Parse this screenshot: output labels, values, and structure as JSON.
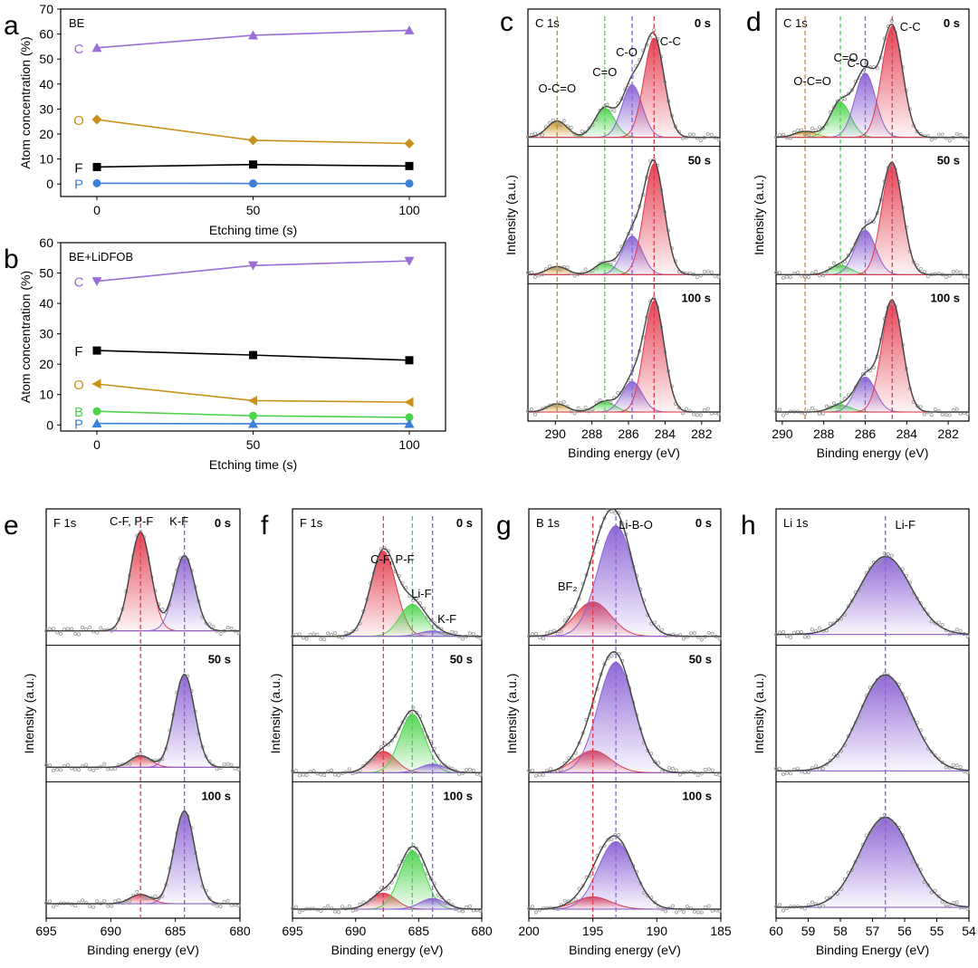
{
  "colors": {
    "purple": "#9b6fd6",
    "orange": "#c8911b",
    "black": "#000000",
    "blue": "#3b7fd9",
    "green": "#4bd34b",
    "red": "#e23a4c",
    "violet": "#8a61d4",
    "gray": "#888888"
  },
  "chart_data": [
    {
      "panel": "a",
      "type": "line",
      "title": "BE",
      "xlabel": "Etching time (s)",
      "ylabel": "Atom concentration (%)",
      "x": [
        0,
        50,
        100
      ],
      "xticks": [
        "0",
        "50",
        "100"
      ],
      "ylim": [
        -5,
        70
      ],
      "yticks": [
        "0",
        "10",
        "20",
        "30",
        "40",
        "50",
        "60",
        "70"
      ],
      "series": [
        {
          "name": "C",
          "color": "#9b6fd6",
          "marker": "triangle-up",
          "values": [
            54.5,
            59.5,
            61.5
          ]
        },
        {
          "name": "O",
          "color": "#c8911b",
          "marker": "diamond",
          "values": [
            25.8,
            17.5,
            16.2
          ]
        },
        {
          "name": "F",
          "color": "#000000",
          "marker": "square",
          "values": [
            6.8,
            7.8,
            7.2
          ]
        },
        {
          "name": "P",
          "color": "#3b7fd9",
          "marker": "circle",
          "values": [
            0.3,
            0.2,
            0.2
          ]
        }
      ]
    },
    {
      "panel": "b",
      "type": "line",
      "title": "BE+LiDFOB",
      "xlabel": "Etching time (s)",
      "ylabel": "Atom concentration (%)",
      "x": [
        0,
        50,
        100
      ],
      "xticks": [
        "0",
        "50",
        "100"
      ],
      "ylim": [
        -2,
        60
      ],
      "yticks": [
        "0",
        "10",
        "20",
        "30",
        "40",
        "50",
        "60"
      ],
      "series": [
        {
          "name": "C",
          "color": "#9b6fd6",
          "marker": "triangle-down",
          "values": [
            47.3,
            52.5,
            54.0
          ]
        },
        {
          "name": "F",
          "color": "#000000",
          "marker": "square",
          "values": [
            24.5,
            23.0,
            21.3
          ]
        },
        {
          "name": "O",
          "color": "#c8911b",
          "marker": "triangle-left",
          "values": [
            13.5,
            8.0,
            7.5
          ]
        },
        {
          "name": "B",
          "color": "#4bd34b",
          "marker": "circle",
          "values": [
            4.5,
            3.0,
            2.5
          ]
        },
        {
          "name": "P",
          "color": "#3b7fd9",
          "marker": "triangle-up",
          "values": [
            0.5,
            0.4,
            0.4
          ]
        }
      ]
    },
    {
      "panel": "c",
      "type": "line",
      "title": "C 1s",
      "xlabel": "Binding energy (eV)",
      "ylabel": "Intensity (a.u.)",
      "xlim": [
        291.5,
        281
      ],
      "xticks": [
        "290",
        "288",
        "286",
        "284",
        "282"
      ],
      "time_labels": [
        "0 s",
        "50 s",
        "100 s"
      ],
      "peak_labels": [
        "O-C=O",
        "C=O",
        "C-O",
        "C-C"
      ],
      "peaks": [
        {
          "label": "O-C=O",
          "center": 289.9,
          "color": "#c8911b",
          "amps": [
            0.14,
            0.07,
            0.07
          ]
        },
        {
          "label": "C=O",
          "center": 287.3,
          "color": "#4bd34b",
          "amps": [
            0.25,
            0.1,
            0.09
          ]
        },
        {
          "label": "C-O",
          "center": 285.8,
          "color": "#8a61d4",
          "amps": [
            0.45,
            0.33,
            0.26
          ]
        },
        {
          "label": "C-C",
          "center": 284.6,
          "color": "#e23a4c",
          "amps": [
            0.85,
            0.95,
            0.95
          ]
        }
      ]
    },
    {
      "panel": "d",
      "type": "line",
      "title": "C 1s",
      "xlabel": "Binding energy (eV)",
      "ylabel": "Intensity (a.u.)",
      "xlim": [
        290.3,
        281
      ],
      "xticks": [
        "290",
        "288",
        "286",
        "284",
        "282"
      ],
      "time_labels": [
        "0 s",
        "50 s",
        "100 s"
      ],
      "peak_labels": [
        "O-C=O",
        "C=O",
        "C-O",
        "C-C"
      ],
      "peaks": [
        {
          "label": "O-C=O",
          "center": 288.9,
          "color": "#c8911b",
          "amps": [
            0.05,
            0.0,
            0.0
          ]
        },
        {
          "label": "C=O",
          "center": 287.2,
          "color": "#4bd34b",
          "amps": [
            0.3,
            0.08,
            0.06
          ]
        },
        {
          "label": "C-O",
          "center": 286.0,
          "color": "#8a61d4",
          "amps": [
            0.55,
            0.38,
            0.3
          ]
        },
        {
          "label": "C-C",
          "center": 284.7,
          "color": "#e23a4c",
          "amps": [
            0.95,
            0.95,
            0.95
          ]
        }
      ]
    },
    {
      "panel": "e",
      "type": "line",
      "title": "F 1s",
      "xlabel": "Binding energy (eV)",
      "ylabel": "Intensity (a.u.)",
      "xlim": [
        695,
        680
      ],
      "xticks": [
        "695",
        "690",
        "685",
        "680"
      ],
      "time_labels": [
        "0 s",
        "50 s",
        "100 s"
      ],
      "peak_labels": [
        "C-F, P-F",
        "K-F"
      ],
      "peaks": [
        {
          "label": "C-F, P-F",
          "center": 687.7,
          "color": "#e23a4c",
          "amps": [
            0.85,
            0.1,
            0.08
          ]
        },
        {
          "label": "K-F",
          "center": 684.3,
          "color": "#8a61d4",
          "amps": [
            0.65,
            0.8,
            0.8
          ]
        }
      ]
    },
    {
      "panel": "f",
      "type": "line",
      "title": "F 1s",
      "xlabel": "Binding energy (eV)",
      "ylabel": "Intensity (a.u.)",
      "xlim": [
        695,
        680
      ],
      "xticks": [
        "695",
        "690",
        "685",
        "680"
      ],
      "time_labels": [
        "0 s",
        "50 s",
        "100 s"
      ],
      "peak_labels": [
        "C-F, P-F",
        "Li-F",
        "K-F"
      ],
      "peaks": [
        {
          "label": "C-F, P-F",
          "center": 687.8,
          "color": "#e23a4c",
          "amps": [
            0.8,
            0.2,
            0.15
          ]
        },
        {
          "label": "Li-F",
          "center": 685.5,
          "color": "#4bd34b",
          "amps": [
            0.3,
            0.55,
            0.55
          ]
        },
        {
          "label": "K-F",
          "center": 683.9,
          "color": "#8a61d4",
          "amps": [
            0.05,
            0.08,
            0.1
          ]
        }
      ]
    },
    {
      "panel": "g",
      "type": "line",
      "title": "B 1s",
      "xlabel": "Binding energy (eV)",
      "ylabel": "Intensity (a.u.)",
      "xlim": [
        200,
        185
      ],
      "xticks": [
        "200",
        "195",
        "190",
        "185"
      ],
      "time_labels": [
        "0 s",
        "50 s",
        "100 s"
      ],
      "peak_labels": [
        "BF₂",
        "Li-B-O"
      ],
      "peaks": [
        {
          "label": "BF2",
          "center": 195.0,
          "color": "#e23a4c",
          "amps": [
            0.28,
            0.18,
            0.1
          ]
        },
        {
          "label": "Li-B-O",
          "center": 193.2,
          "color": "#8a61d4",
          "amps": [
            0.9,
            0.9,
            0.55
          ]
        }
      ]
    },
    {
      "panel": "h",
      "type": "line",
      "title": "Li 1s",
      "xlabel": "Binding Energy (eV)",
      "ylabel": "Intensity (a.u.)",
      "xlim": [
        60,
        54
      ],
      "xticks": [
        "60",
        "59",
        "58",
        "57",
        "56",
        "55",
        "54"
      ],
      "time_labels": [],
      "peak_labels": [
        "Li-F"
      ],
      "peaks": [
        {
          "label": "Li-F",
          "center": 56.6,
          "color": "#8a61d4",
          "amps": [
            0.65,
            0.8,
            0.75
          ]
        }
      ]
    }
  ]
}
